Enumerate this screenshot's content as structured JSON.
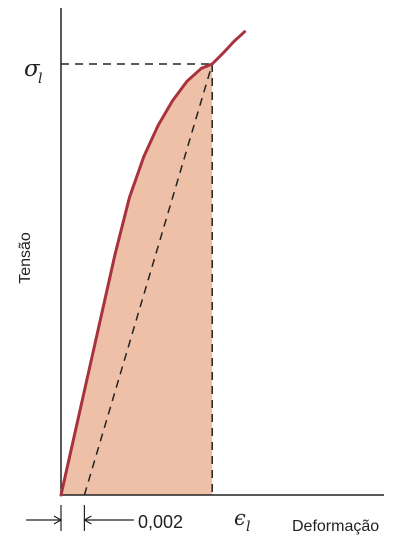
{
  "chart_data": {
    "type": "line",
    "title": "",
    "xlabel": "Deformação",
    "ylabel": "Tensão",
    "grid": false,
    "colors": {
      "curve": "#a8323e",
      "fill": "#efc0a8",
      "dashed": "#222222",
      "axis": "#222222"
    },
    "annotations": {
      "yield_stress_label": "σ",
      "yield_stress_subscript": "l",
      "yield_strain_label": "ϵ",
      "yield_strain_subscript": "l",
      "offset_label": "0,002"
    },
    "series": [
      {
        "values": [
          [
            0,
            0
          ],
          [
            0.1,
            0.186
          ],
          [
            0.2,
            0.372
          ],
          [
            0.3,
            0.558
          ],
          [
            0.38,
            0.69
          ],
          [
            0.46,
            0.785
          ],
          [
            0.54,
            0.858
          ],
          [
            0.62,
            0.915
          ],
          [
            0.7,
            0.96
          ],
          [
            0.78,
            0.99
          ],
          [
            0.84,
            1.0
          ],
          [
            0.9,
            1.025
          ],
          [
            0.96,
            1.052
          ],
          [
            1.02,
            1.075
          ]
        ]
      }
    ],
    "offset_line": [
      [
        0.13,
        0
      ],
      [
        0.84,
        1.0
      ]
    ],
    "yield_point": [
      0.84,
      1.0
    ]
  }
}
